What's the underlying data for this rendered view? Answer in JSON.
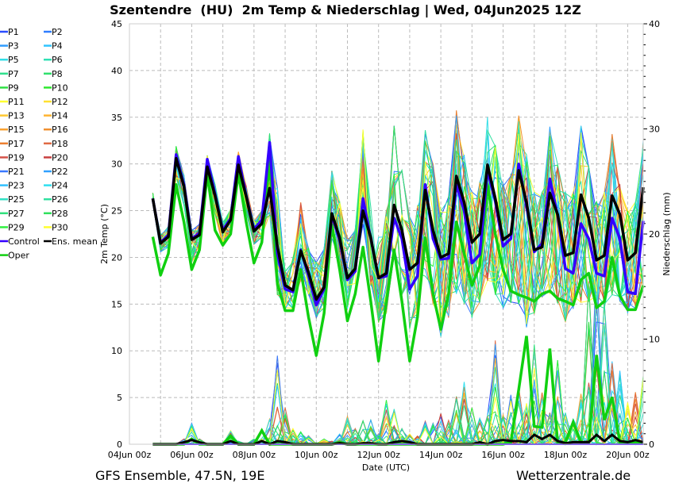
{
  "chart_data": {
    "type": "line",
    "title": "Szentendre  (HU)  2m Temp & Niederschlag | Wed, 04Jun2025 12Z",
    "xlabel": "Date (UTC)",
    "ylabel": "2m Temp (°C)",
    "y2label": "Niederschlag (mm)",
    "footer_left": "GFS Ensemble, 47.5N, 19E",
    "footer_right": "Wetterzentrale.de",
    "x_start": "04Jun 18z",
    "x_step_hours": 6,
    "x_ticks": [
      "04Jun 00z",
      "06Jun 00z",
      "08Jun 00z",
      "10Jun 00z",
      "12Jun 00z",
      "14Jun 00z",
      "16Jun 00z",
      "18Jun 00z",
      "20Jun 00z"
    ],
    "ylim": [
      0,
      45
    ],
    "y_ticks": [
      "0",
      "5",
      "10",
      "15",
      "20",
      "25",
      "30",
      "35",
      "40",
      "45"
    ],
    "y2lim": [
      0,
      40
    ],
    "y2_ticks": [
      "0",
      "10",
      "20",
      "30",
      "40"
    ],
    "grid": true,
    "legend_position": "left",
    "legend": [
      {
        "name": "P1",
        "color": "#2a4cff"
      },
      {
        "name": "P2",
        "color": "#2f7dff"
      },
      {
        "name": "P3",
        "color": "#2f9cff"
      },
      {
        "name": "P4",
        "color": "#30c4ff"
      },
      {
        "name": "P5",
        "color": "#30dde6"
      },
      {
        "name": "P6",
        "color": "#2fe0b4"
      },
      {
        "name": "P7",
        "color": "#30e08e"
      },
      {
        "name": "P8",
        "color": "#30e06c"
      },
      {
        "name": "P9",
        "color": "#30e044"
      },
      {
        "name": "P10",
        "color": "#2fe82f"
      },
      {
        "name": "P11",
        "color": "#ffff30"
      },
      {
        "name": "P12",
        "color": "#ffe030"
      },
      {
        "name": "P13",
        "color": "#ffc830"
      },
      {
        "name": "P14",
        "color": "#ffb430"
      },
      {
        "name": "P15",
        "color": "#f8a030"
      },
      {
        "name": "P16",
        "color": "#f09030"
      },
      {
        "name": "P17",
        "color": "#ec7f30"
      },
      {
        "name": "P18",
        "color": "#e06a44"
      },
      {
        "name": "P19",
        "color": "#d45248"
      },
      {
        "name": "P20",
        "color": "#c84040"
      },
      {
        "name": "P21",
        "color": "#3a78ff"
      },
      {
        "name": "P22",
        "color": "#30a0ff"
      },
      {
        "name": "P23",
        "color": "#30c0ff"
      },
      {
        "name": "P24",
        "color": "#30e0f0"
      },
      {
        "name": "P25",
        "color": "#30e0c4"
      },
      {
        "name": "P26",
        "color": "#30e0a0"
      },
      {
        "name": "P27",
        "color": "#30e07c"
      },
      {
        "name": "P28",
        "color": "#30e05c"
      },
      {
        "name": "P29",
        "color": "#30f040"
      },
      {
        "name": "P30",
        "color": "#ffff30"
      },
      {
        "name": "Control",
        "color": "#3300ff"
      },
      {
        "name": "Ens. mean",
        "color": "#000000"
      },
      {
        "name": "Oper",
        "color": "#10d010"
      }
    ],
    "temperature": {
      "ens_mean": [
        26.3,
        21.5,
        22.2,
        30.6,
        27.6,
        21.9,
        22.4,
        29.7,
        26.6,
        22.7,
        24.0,
        29.9,
        26.5,
        22.8,
        23.6,
        27.4,
        21.2,
        17.0,
        16.5,
        20.7,
        18.4,
        15.5,
        16.8,
        24.7,
        22.1,
        17.8,
        18.8,
        25.0,
        22.1,
        17.8,
        18.3,
        25.6,
        22.9,
        18.7,
        19.4,
        27.2,
        22.9,
        20.0,
        20.4,
        28.7,
        25.9,
        21.6,
        22.5,
        29.9,
        26.3,
        21.9,
        22.5,
        29.3,
        25.9,
        20.8,
        21.1,
        26.9,
        24.6,
        20.2,
        20.5,
        26.7,
        24.2,
        19.7,
        20.2,
        26.6,
        24.6,
        19.7,
        20.5,
        27.5
      ],
      "control": [
        26.3,
        21.6,
        22.4,
        31.0,
        27.8,
        22.0,
        22.6,
        30.5,
        26.8,
        22.9,
        24.2,
        30.8,
        26.6,
        23.0,
        24.0,
        32.3,
        20.4,
        16.6,
        16.3,
        20.8,
        18.0,
        14.9,
        16.6,
        24.5,
        21.8,
        17.6,
        18.5,
        26.3,
        22.0,
        17.8,
        18.0,
        24.2,
        22.0,
        16.6,
        18.0,
        27.8,
        22.0,
        19.8,
        19.9,
        27.8,
        25.0,
        19.4,
        20.3,
        29.3,
        26.0,
        21.2,
        22.0,
        30.0,
        25.5,
        20.6,
        21.5,
        28.4,
        24.5,
        18.8,
        18.3,
        23.6,
        22.0,
        18.3,
        18.0,
        24.2,
        22.0,
        16.3,
        16.1,
        23.9
      ],
      "oper": [
        22.2,
        18.1,
        20.4,
        27.8,
        23.8,
        18.7,
        20.8,
        28.9,
        22.9,
        21.3,
        22.5,
        29.0,
        23.8,
        19.4,
        21.6,
        30.3,
        17.2,
        14.3,
        14.3,
        18.7,
        13.6,
        9.5,
        14.0,
        23.5,
        18.7,
        13.2,
        16.1,
        21.1,
        15.3,
        8.9,
        15.3,
        20.8,
        15.3,
        8.9,
        13.6,
        22.1,
        16.1,
        12.3,
        16.1,
        23.8,
        20.4,
        17.0,
        19.1,
        27.8,
        22.5,
        18.7,
        16.4,
        16.0,
        15.7,
        15.3,
        16.1,
        16.4,
        15.6,
        15.3,
        14.9,
        17.6,
        18.3,
        14.6,
        15.3,
        20.0,
        15.9,
        14.4,
        14.4,
        17.0
      ],
      "member_max": [
        27.0,
        22.5,
        23.3,
        31.9,
        28.8,
        23.0,
        23.6,
        31.0,
        27.8,
        23.8,
        25.2,
        31.3,
        27.7,
        24.0,
        25.0,
        33.3,
        27.5,
        18.5,
        20.0,
        26.0,
        21.0,
        19.5,
        21.0,
        29.3,
        26.0,
        22.0,
        23.0,
        33.7,
        30.0,
        24.0,
        25.0,
        34.1,
        30.0,
        24.5,
        25.5,
        33.7,
        30.0,
        25.0,
        26.5,
        35.8,
        31.0,
        27.0,
        28.0,
        37.0,
        32.0,
        28.0,
        29.0,
        35.2,
        31.0,
        27.0,
        27.0,
        34.0,
        30.0,
        27.0,
        27.0,
        34.1,
        30.0,
        26.0,
        27.0,
        33.2,
        30.0,
        25.0,
        26.0,
        32.6
      ],
      "member_min": [
        25.8,
        20.6,
        21.0,
        28.5,
        25.5,
        19.5,
        20.5,
        27.8,
        24.6,
        21.2,
        22.4,
        28.2,
        24.8,
        21.4,
        22.0,
        24.5,
        16.0,
        14.5,
        14.5,
        17.5,
        16.0,
        13.5,
        14.5,
        22.0,
        18.5,
        14.5,
        15.5,
        20.5,
        17.0,
        13.0,
        14.0,
        20.0,
        16.0,
        12.0,
        13.0,
        17.5,
        15.0,
        11.5,
        13.5,
        16.0,
        15.0,
        13.5,
        15.0,
        17.5,
        16.0,
        14.5,
        15.0,
        15.0,
        12.5,
        14.0,
        15.5,
        16.0,
        15.0,
        13.0,
        14.5,
        15.0,
        15.0,
        14.0,
        14.5,
        16.0,
        15.0,
        14.0,
        14.5,
        16.5
      ]
    },
    "precipitation": {
      "ens_mean": [
        0,
        0,
        0,
        0,
        0.2,
        0.4,
        0.2,
        0,
        0,
        0,
        0.3,
        0,
        0,
        0,
        0.3,
        0,
        0.3,
        0.2,
        0,
        0,
        0,
        0,
        0,
        0,
        0.1,
        0,
        0,
        0.1,
        0.1,
        0,
        0,
        0.2,
        0.3,
        0.2,
        0,
        0,
        0,
        0,
        0,
        0,
        0,
        0,
        0.2,
        0,
        0.3,
        0.4,
        0.3,
        0.3,
        0.2,
        0.9,
        0.5,
        0.9,
        0.3,
        0.1,
        0.2,
        0.2,
        0.2,
        0.9,
        0.3,
        0.9,
        0.3,
        0.2,
        0.4,
        0.2
      ],
      "oper": [
        0,
        0,
        0,
        0,
        0,
        0.5,
        0,
        0,
        0,
        0,
        0.8,
        0,
        0,
        0,
        1.3,
        0,
        0,
        0,
        0,
        0,
        0,
        0,
        0,
        0,
        0.2,
        0,
        0,
        0,
        0,
        0,
        0,
        0,
        0,
        0,
        0,
        0,
        0,
        0,
        0,
        0,
        0,
        0,
        0,
        0,
        0,
        0,
        0.2,
        5.2,
        10.3,
        1.7,
        1.6,
        9.1,
        0.2,
        0.2,
        2.1,
        0.2,
        0.2,
        8.5,
        2.3,
        4.5,
        0.2,
        0.2,
        0.2,
        0.2
      ],
      "member_max": [
        0,
        0,
        0,
        0,
        0.5,
        2.0,
        0.5,
        0,
        0,
        0,
        1.3,
        0.3,
        0,
        0.5,
        1.2,
        2.5,
        8.6,
        3.5,
        1.5,
        1.2,
        0.8,
        0.3,
        0.5,
        0.3,
        1.0,
        2.7,
        1.5,
        2.5,
        2.3,
        1.0,
        4.3,
        3.5,
        1.5,
        1.0,
        0.8,
        2.2,
        2.0,
        3.0,
        2.3,
        4.7,
        6.8,
        3.5,
        2.5,
        4.5,
        10.0,
        2.8,
        4.7,
        5.5,
        4.0,
        9.5,
        5.0,
        3.0,
        8.0,
        3.0,
        2.5,
        4.8,
        16.0,
        18.0,
        14.0,
        8.0,
        7.0,
        4.0,
        5.0,
        6.5
      ]
    }
  }
}
